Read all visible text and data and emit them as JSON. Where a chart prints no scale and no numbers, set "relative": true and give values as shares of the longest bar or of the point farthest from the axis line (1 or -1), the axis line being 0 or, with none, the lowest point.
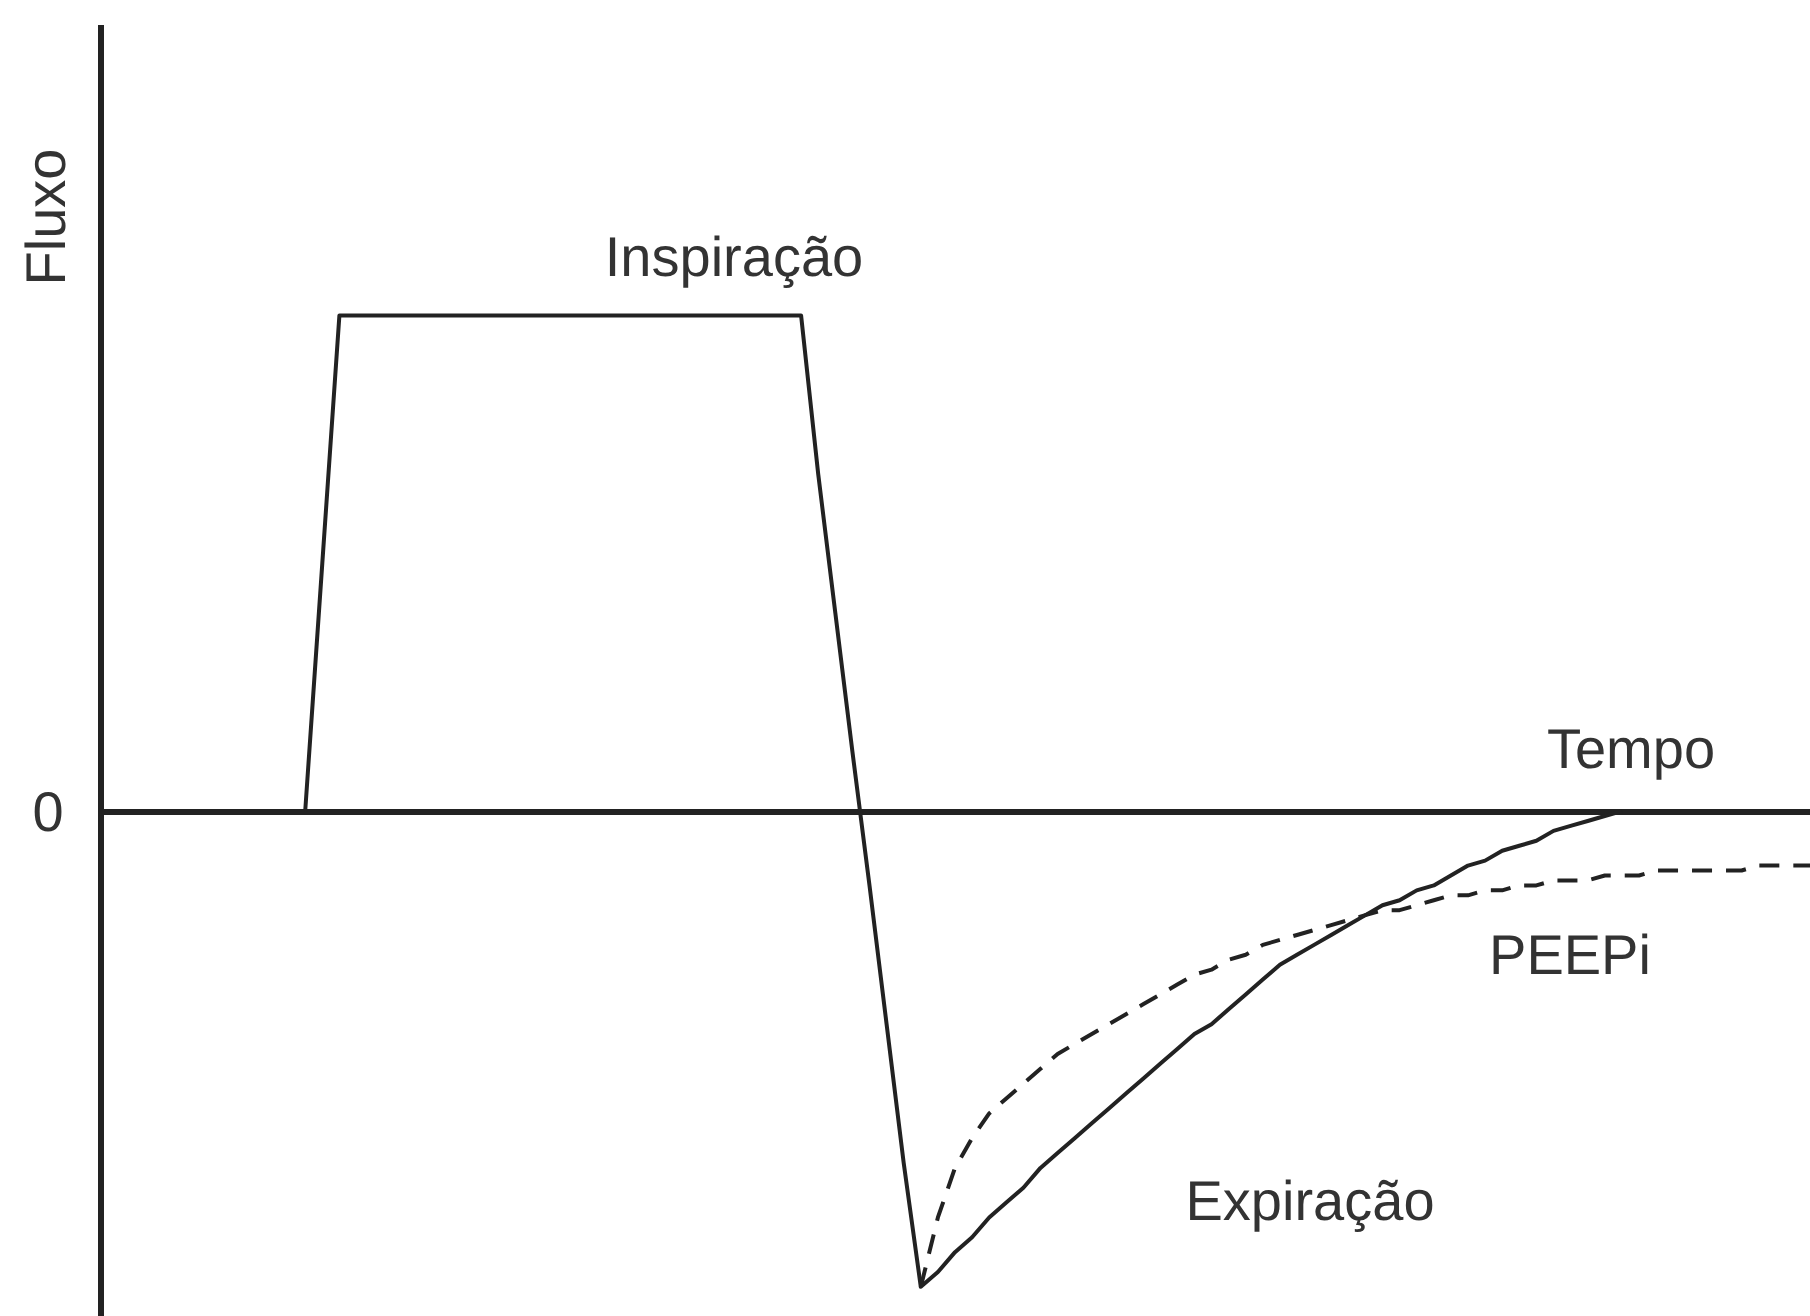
{
  "chart_data": {
    "type": "line",
    "xlabel": "Tempo",
    "ylabel": "Fluxo",
    "relative": true,
    "categories": [
      null,
      null,
      null,
      null,
      null,
      null,
      null,
      null,
      null,
      null,
      null,
      null,
      null,
      null,
      null,
      null,
      null,
      null,
      null,
      null,
      null,
      null,
      null,
      null,
      null,
      null,
      null,
      null,
      null,
      null,
      null,
      null,
      null,
      null,
      null,
      null,
      null,
      null,
      null,
      null,
      null,
      null,
      null,
      null,
      null,
      null,
      null,
      null,
      null,
      null,
      null,
      null,
      null,
      null,
      null,
      null,
      null,
      null,
      null,
      null,
      null,
      null,
      null,
      null,
      null,
      null,
      null,
      null,
      null,
      null,
      null,
      null,
      null,
      null,
      null,
      null,
      null,
      null,
      null,
      null,
      null,
      null,
      null,
      null,
      null,
      null,
      null,
      null,
      null,
      null,
      null,
      null,
      null,
      null,
      null,
      null,
      null,
      null,
      null,
      null,
      null
    ],
    "series": [
      {
        "color": "#222222",
        "line_style": "solid",
        "values": [
          null,
          null,
          null,
          null,
          null,
          null,
          null,
          null,
          null,
          null,
          null,
          null,
          0,
          0.5,
          1,
          1,
          1,
          1,
          1,
          1,
          1,
          1,
          1,
          1,
          1,
          1,
          1,
          1,
          1,
          1,
          1,
          1,
          1,
          1,
          1,
          1,
          1,
          1,
          1,
          1,
          1,
          1,
          0.68,
          0.4,
          0.12,
          -0.15,
          -0.43,
          -0.71,
          -0.96,
          -0.93,
          -0.89,
          -0.86,
          -0.82,
          -0.79,
          -0.76,
          -0.72,
          -0.69,
          -0.66,
          -0.63,
          -0.6,
          -0.57,
          -0.54,
          -0.51,
          -0.48,
          -0.45,
          -0.43,
          -0.4,
          -0.37,
          -0.34,
          -0.31,
          -0.29,
          -0.27,
          -0.25,
          -0.23,
          -0.21,
          -0.19,
          -0.18,
          -0.16,
          -0.15,
          -0.13,
          -0.11,
          -0.1,
          -0.08,
          -0.07,
          -0.06,
          -0.04,
          -0.03,
          -0.02,
          -0.01,
          0,
          null,
          null,
          null,
          null,
          null,
          null,
          null,
          null,
          null,
          null,
          null
        ]
      },
      {
        "name": "PEEPi",
        "color": "#222222",
        "line_style": "dashed",
        "values": [
          null,
          null,
          null,
          null,
          null,
          null,
          null,
          null,
          null,
          null,
          null,
          null,
          null,
          null,
          null,
          null,
          null,
          null,
          null,
          null,
          null,
          null,
          null,
          null,
          null,
          null,
          null,
          null,
          null,
          null,
          null,
          null,
          null,
          null,
          null,
          null,
          null,
          null,
          null,
          null,
          null,
          null,
          null,
          null,
          null,
          null,
          null,
          null,
          -0.96,
          -0.82,
          -0.72,
          -0.66,
          -0.61,
          -0.58,
          -0.55,
          -0.52,
          -0.49,
          -0.47,
          -0.45,
          -0.43,
          -0.41,
          -0.39,
          -0.37,
          -0.35,
          -0.33,
          -0.32,
          -0.3,
          -0.29,
          -0.27,
          -0.26,
          -0.25,
          -0.24,
          -0.23,
          -0.22,
          -0.21,
          -0.2,
          -0.2,
          -0.19,
          -0.18,
          -0.17,
          -0.17,
          -0.16,
          -0.16,
          -0.15,
          -0.15,
          -0.14,
          -0.14,
          -0.14,
          -0.13,
          -0.13,
          -0.13,
          -0.12,
          -0.12,
          -0.12,
          -0.12,
          -0.12,
          -0.12,
          -0.11,
          -0.11,
          -0.11,
          -0.11
        ]
      }
    ],
    "annotations": [
      "0",
      "Inspiração",
      "Expiração"
    ]
  }
}
